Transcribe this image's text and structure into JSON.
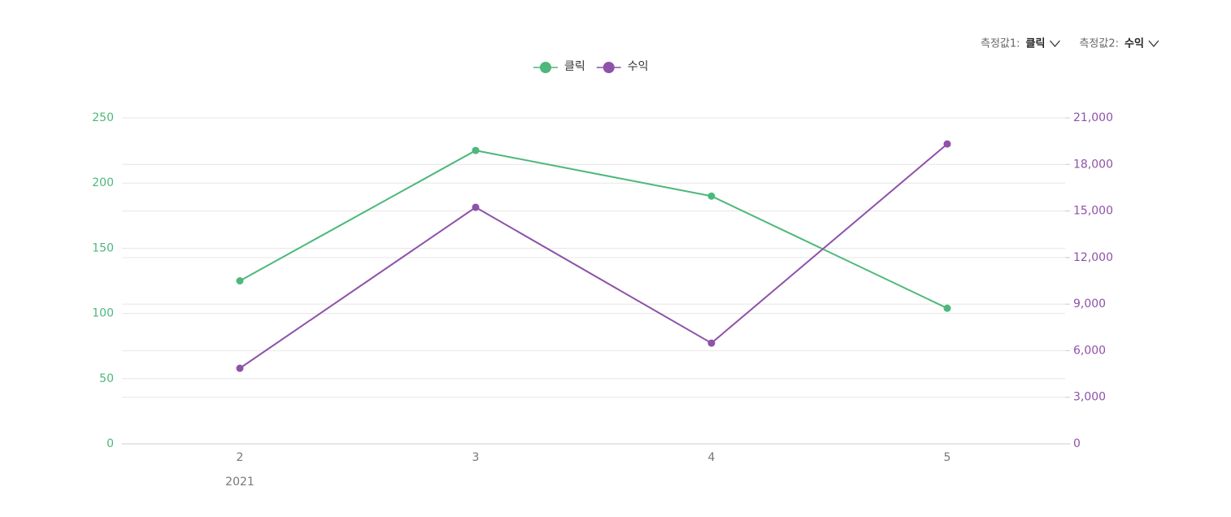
{
  "chart_data": {
    "type": "line",
    "controls": [
      {
        "label": "측정값1:",
        "value": "클릭"
      },
      {
        "label": "측정값2:",
        "value": "수익"
      }
    ],
    "categories": [
      "2",
      "3",
      "4",
      "5"
    ],
    "x_sublabel": "2021",
    "series": [
      {
        "name": "클릭",
        "color": "#4db87a",
        "values": [
          125,
          225,
          190,
          104
        ]
      },
      {
        "name": "수익",
        "color": "#8e52a8",
        "axis": "y2",
        "values": [
          4870,
          15240,
          6490,
          19320
        ]
      }
    ],
    "ylim": [
      0,
      250
    ],
    "yticks": [
      0,
      50,
      100,
      150,
      200,
      250
    ],
    "y2lim": [
      0,
      21000
    ],
    "y2ticks": [
      0,
      {
        "value": 3000,
        "label": "3,000"
      },
      {
        "value": 6000,
        "label": "6,000"
      },
      {
        "value": 9000,
        "label": "9,000"
      },
      {
        "value": 12000,
        "label": "12,000"
      },
      {
        "value": 15000,
        "label": "15,000"
      },
      {
        "value": 18000,
        "label": "18,000"
      },
      {
        "value": 21000,
        "label": "21,000"
      }
    ],
    "grid": true
  }
}
